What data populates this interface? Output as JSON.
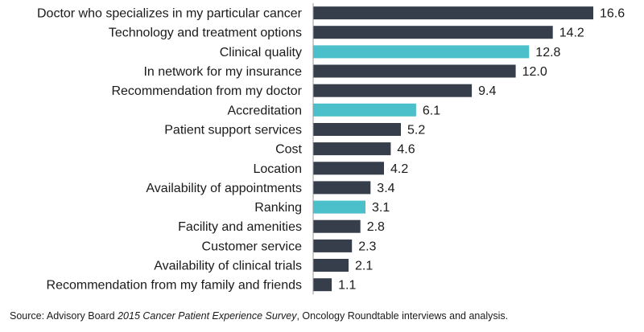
{
  "chart_data": {
    "type": "bar",
    "orientation": "horizontal",
    "categories": [
      "Doctor who specializes in my particular cancer",
      "Technology and treatment options",
      "Clinical quality",
      "In network for my insurance",
      "Recommendation from my doctor",
      "Accreditation",
      "Patient support services",
      "Cost",
      "Location",
      "Availability of appointments",
      "Ranking",
      "Facility and amenities",
      "Customer service",
      "Availability of clinical trials",
      "Recommendation from my family and friends"
    ],
    "values": [
      16.6,
      14.2,
      12.8,
      12.0,
      9.4,
      6.1,
      5.2,
      4.6,
      4.2,
      3.4,
      3.1,
      2.8,
      2.3,
      2.1,
      1.1
    ],
    "value_labels": [
      "16.6",
      "14.2",
      "12.8",
      "12.0",
      "9.4",
      "6.1",
      "5.2",
      "4.6",
      "4.2",
      "3.4",
      "3.1",
      "2.8",
      "2.3",
      "2.1",
      "1.1"
    ],
    "highlighted": [
      false,
      false,
      true,
      false,
      false,
      true,
      false,
      false,
      false,
      false,
      true,
      false,
      false,
      false,
      false
    ],
    "colors": {
      "default": "#363e4b",
      "highlight": "#4bbfca"
    },
    "xlim": [
      0,
      16.6
    ],
    "grid": false,
    "legend": "none"
  },
  "source": {
    "prefix": "Source: Advisory Board ",
    "italic": "2015 Cancer Patient Experience Survey",
    "suffix": ", Oncology Roundtable interviews and analysis."
  }
}
